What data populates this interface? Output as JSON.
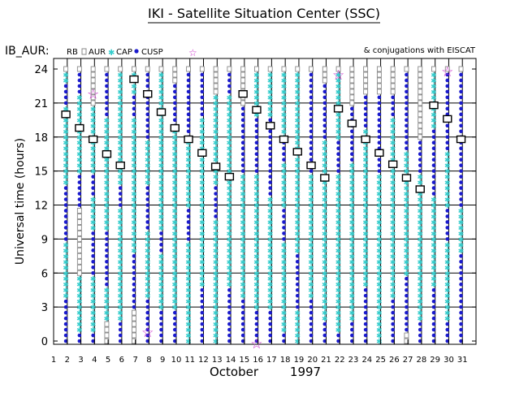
{
  "header": {
    "title": "IKI - Satellite Situation Center (SSC)",
    "series_label": "IB_AUR:",
    "conjugations_label": "& conjugations with EISCAT"
  },
  "legend": {
    "items": [
      {
        "label": "RB",
        "marker": "none",
        "color": "#000000"
      },
      {
        "label": "AUR",
        "marker": "square",
        "color": "#888888"
      },
      {
        "label": "CAP",
        "marker": "star",
        "color": "#33cccc"
      },
      {
        "label": "CUSP",
        "marker": "dot",
        "color": "#1a1acc"
      },
      {
        "label": "",
        "marker": "open-star",
        "color": "#cc33cc"
      }
    ]
  },
  "colors": {
    "aur": "#8a8a8a",
    "cap": "#33cccc",
    "cusp": "#1a1acc",
    "conjugation": "#cc33cc",
    "axis": "#000000"
  },
  "chart_data": {
    "type": "scatter",
    "xlabel_month": "October",
    "xlabel_year": "1997",
    "ylabel": "Universal time (hours)",
    "x_ticks": [
      1,
      2,
      3,
      4,
      5,
      6,
      7,
      8,
      9,
      10,
      11,
      12,
      13,
      14,
      15,
      16,
      17,
      18,
      19,
      20,
      21,
      22,
      23,
      24,
      25,
      26,
      27,
      28,
      29,
      30,
      31
    ],
    "y_ticks": [
      0,
      3,
      6,
      9,
      12,
      15,
      18,
      21,
      24
    ],
    "xlim": [
      1,
      32
    ],
    "ylim": [
      0,
      24
    ],
    "grid": true,
    "days": [
      {
        "day": 1.9,
        "eiscat": 20,
        "cusp": [
          [
            0,
            4
          ],
          [
            9,
            14
          ],
          [
            21,
            23
          ]
        ],
        "cap": [
          [
            4,
            9
          ],
          [
            14,
            21
          ],
          [
            23,
            24
          ]
        ]
      },
      {
        "day": 2.9,
        "eiscat": 18.8,
        "cusp": [
          [
            0,
            1
          ],
          [
            12,
            15
          ],
          [
            22,
            24
          ]
        ],
        "cap": [
          [
            1,
            6
          ],
          [
            15,
            22
          ]
        ]
      },
      {
        "day": 3.9,
        "eiscat": 17.8,
        "cusp": [
          [
            0,
            1
          ],
          [
            6,
            10
          ],
          [
            13,
            15
          ]
        ],
        "cap": [
          [
            1,
            6
          ],
          [
            10,
            13
          ],
          [
            15,
            21
          ]
        ],
        "star": 21.8
      },
      {
        "day": 4.9,
        "eiscat": 16.5,
        "cusp": [
          [
            5,
            10
          ],
          [
            20,
            24
          ]
        ],
        "cap": [
          [
            2,
            5
          ],
          [
            10,
            20
          ]
        ]
      },
      {
        "day": 5.9,
        "eiscat": 15.5,
        "cusp": [
          [
            0,
            2
          ],
          [
            12,
            14
          ]
        ],
        "cap": [
          [
            2,
            12
          ],
          [
            14,
            24
          ]
        ]
      },
      {
        "day": 6.9,
        "eiscat": 23.1,
        "cusp": [
          [
            3,
            8
          ],
          [
            20,
            22
          ]
        ],
        "cap": [
          [
            8,
            20
          ],
          [
            22,
            24
          ]
        ]
      },
      {
        "day": 7.9,
        "eiscat": 21.8,
        "cusp": [
          [
            0,
            4
          ],
          [
            10,
            14
          ],
          [
            18,
            24
          ]
        ],
        "cap": [
          [
            4,
            10
          ],
          [
            14,
            18
          ]
        ],
        "star": 0.8
      },
      {
        "day": 8.9,
        "eiscat": 20.2,
        "cusp": [
          [
            0,
            3
          ],
          [
            8,
            10
          ]
        ],
        "cap": [
          [
            3,
            8
          ],
          [
            10,
            24
          ]
        ]
      },
      {
        "day": 9.9,
        "eiscat": 18.8,
        "cusp": [
          [
            0,
            3
          ],
          [
            19,
            23
          ]
        ],
        "cap": [
          [
            3,
            19
          ]
        ]
      },
      {
        "day": 10.9,
        "eiscat": 17.8,
        "cusp": [
          [
            9,
            12
          ],
          [
            18,
            24
          ]
        ],
        "cap": [
          [
            0,
            9
          ],
          [
            12,
            18
          ]
        ]
      },
      {
        "day": 11.9,
        "eiscat": 16.6,
        "cusp": [
          [
            0,
            5
          ],
          [
            20,
            24
          ]
        ],
        "cap": [
          [
            5,
            20
          ]
        ]
      },
      {
        "day": 12.9,
        "eiscat": 15.4,
        "cusp": [
          [
            11,
            14
          ]
        ],
        "cap": [
          [
            0,
            11
          ],
          [
            14,
            22
          ]
        ]
      },
      {
        "day": 13.9,
        "eiscat": 14.5,
        "cusp": [
          [
            0,
            5
          ],
          [
            22,
            24
          ]
        ],
        "cap": [
          [
            5,
            22
          ]
        ]
      },
      {
        "day": 14.9,
        "eiscat": 21.8,
        "cusp": [
          [
            0,
            4
          ],
          [
            15,
            21
          ]
        ],
        "cap": [
          [
            4,
            15
          ]
        ]
      },
      {
        "day": 15.9,
        "eiscat": 20.4,
        "cusp": [
          [
            0,
            3
          ],
          [
            15,
            20
          ]
        ],
        "cap": [
          [
            3,
            15
          ],
          [
            20,
            24
          ]
        ],
        "star": -0.2
      },
      {
        "day": 16.9,
        "eiscat": 19,
        "cusp": [
          [
            0,
            3
          ],
          [
            13,
            20
          ]
        ],
        "cap": [
          [
            3,
            13
          ],
          [
            20,
            24
          ]
        ]
      },
      {
        "day": 17.9,
        "eiscat": 17.8,
        "cusp": [
          [
            0,
            1
          ],
          [
            9,
            12
          ],
          [
            16,
            18
          ]
        ],
        "cap": [
          [
            1,
            9
          ],
          [
            12,
            16
          ],
          [
            18,
            24
          ]
        ]
      },
      {
        "day": 18.9,
        "eiscat": 16.7,
        "cusp": [
          [
            3,
            8
          ]
        ],
        "cap": [
          [
            0,
            3
          ],
          [
            8,
            24
          ]
        ]
      },
      {
        "day": 19.9,
        "eiscat": 15.5,
        "cusp": [
          [
            0,
            4
          ],
          [
            15,
            24
          ]
        ],
        "cap": [
          [
            4,
            15
          ]
        ]
      },
      {
        "day": 20.9,
        "eiscat": 14.4,
        "cusp": [
          [
            0,
            2
          ],
          [
            18,
            23
          ]
        ],
        "cap": [
          [
            2,
            18
          ]
        ]
      },
      {
        "day": 21.9,
        "eiscat": 20.5,
        "cusp": [
          [
            0,
            1
          ],
          [
            15,
            18
          ]
        ],
        "cap": [
          [
            1,
            15
          ],
          [
            18,
            24
          ]
        ],
        "star": 23.5
      },
      {
        "day": 22.9,
        "eiscat": 19.2,
        "cusp": [
          [
            0,
            2
          ],
          [
            16,
            21
          ]
        ],
        "cap": [
          [
            2,
            16
          ]
        ]
      },
      {
        "day": 23.9,
        "eiscat": 17.8,
        "cusp": [
          [
            0,
            5
          ],
          [
            19,
            22
          ]
        ],
        "cap": [
          [
            5,
            19
          ]
        ]
      },
      {
        "day": 24.9,
        "eiscat": 16.6,
        "cusp": [
          [
            15,
            22
          ]
        ],
        "cap": [
          [
            0,
            15
          ]
        ]
      },
      {
        "day": 25.9,
        "eiscat": 15.6,
        "cusp": [
          [
            0,
            4
          ],
          [
            20,
            22
          ]
        ],
        "cap": [
          [
            4,
            20
          ]
        ]
      },
      {
        "day": 26.9,
        "eiscat": 14.4,
        "cusp": [
          [
            1,
            6
          ],
          [
            17,
            24
          ]
        ],
        "cap": [
          [
            6,
            17
          ]
        ]
      },
      {
        "day": 27.9,
        "eiscat": 13.4,
        "cusp": [
          [
            0,
            2
          ],
          [
            15,
            18
          ]
        ],
        "cap": [
          [
            2,
            15
          ]
        ]
      },
      {
        "day": 28.9,
        "eiscat": 20.8,
        "cusp": [
          [
            0,
            5
          ],
          [
            13,
            19
          ]
        ],
        "cap": [
          [
            5,
            13
          ],
          [
            19,
            24
          ]
        ]
      },
      {
        "day": 29.9,
        "eiscat": 19.6,
        "cusp": [
          [
            0,
            2
          ],
          [
            9,
            12
          ],
          [
            17,
            24
          ]
        ],
        "cap": [
          [
            2,
            9
          ],
          [
            12,
            17
          ]
        ],
        "star": 23.8
      },
      {
        "day": 30.9,
        "eiscat": 17.8,
        "cusp": [
          [
            0,
            8
          ],
          [
            12,
            24
          ]
        ],
        "cap": [
          [
            8,
            12
          ]
        ]
      }
    ]
  }
}
